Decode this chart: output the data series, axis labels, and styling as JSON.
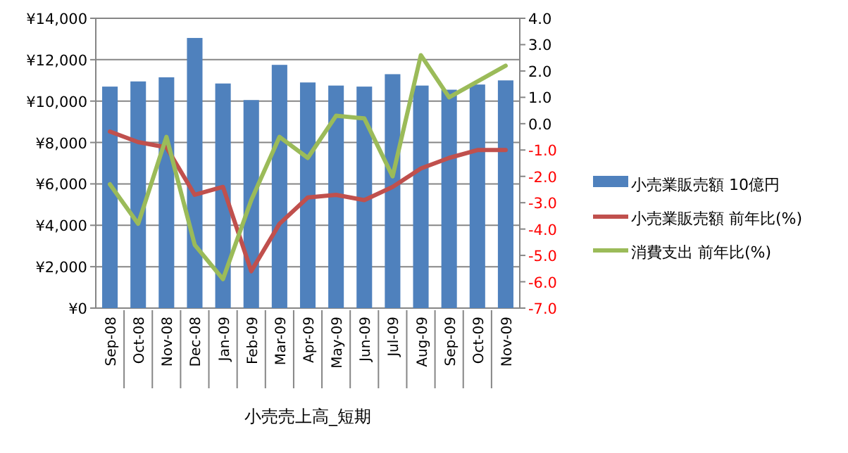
{
  "chart_data": {
    "type": "bar",
    "xlabel": "小売売上高_短期",
    "categories": [
      "Sep-08",
      "Oct-08",
      "Nov-08",
      "Dec-08",
      "Jan-09",
      "Feb-09",
      "Mar-09",
      "Apr-09",
      "May-09",
      "Jun-09",
      "Jul-09",
      "Aug-09",
      "Sep-09",
      "Oct-09",
      "Nov-09"
    ],
    "series": [
      {
        "name": "小売業販売額 10億円",
        "color": "#4f81bd",
        "values": [
          10700,
          10950,
          11150,
          13050,
          10850,
          10050,
          11750,
          10900,
          10750,
          10700,
          11300,
          10750,
          10550,
          10800,
          11000
        ]
      },
      {
        "name": "小売業販売額 前年比(%)",
        "color": "#c0504d",
        "type": "line",
        "axis": "y2",
        "values": [
          -0.3,
          -0.7,
          -0.9,
          -2.7,
          -2.4,
          -5.6,
          -3.8,
          -2.8,
          -2.7,
          -2.9,
          -2.4,
          -1.7,
          -1.3,
          -1.0,
          -1.0
        ]
      },
      {
        "name": "消費支出 前年比(%)",
        "color": "#9bbb59",
        "type": "line",
        "axis": "y2",
        "values": [
          -2.3,
          -3.8,
          -0.5,
          -4.6,
          -5.9,
          -2.9,
          -0.5,
          -1.3,
          0.3,
          0.2,
          -2.0,
          2.6,
          1.0,
          1.6,
          2.2
        ]
      }
    ],
    "ylim": [
      0,
      14000
    ],
    "yticks": [
      {
        "value": 0,
        "label": "¥0"
      },
      {
        "value": 2000,
        "label": "¥2,000"
      },
      {
        "value": 4000,
        "label": "¥4,000"
      },
      {
        "value": 6000,
        "label": "¥6,000"
      },
      {
        "value": 8000,
        "label": "¥8,000"
      },
      {
        "value": 10000,
        "label": "¥10,000"
      },
      {
        "value": 12000,
        "label": "¥12,000"
      },
      {
        "value": 14000,
        "label": "¥14,000"
      }
    ],
    "y2lim": [
      -7,
      4
    ],
    "y2ticks": [
      {
        "value": 4,
        "label": "4.0"
      },
      {
        "value": 3,
        "label": "3.0"
      },
      {
        "value": 2,
        "label": "2.0"
      },
      {
        "value": 1,
        "label": "1.0"
      },
      {
        "value": 0,
        "label": "0.0"
      },
      {
        "value": -1,
        "label": "-1.0"
      },
      {
        "value": -2,
        "label": "-2.0"
      },
      {
        "value": -3,
        "label": "-3.0"
      },
      {
        "value": -4,
        "label": "-4.0"
      },
      {
        "value": -5,
        "label": "-5.0"
      },
      {
        "value": -6,
        "label": "-6.0"
      },
      {
        "value": -7,
        "label": "-7.0"
      }
    ],
    "grid": "y",
    "legend": "right"
  }
}
